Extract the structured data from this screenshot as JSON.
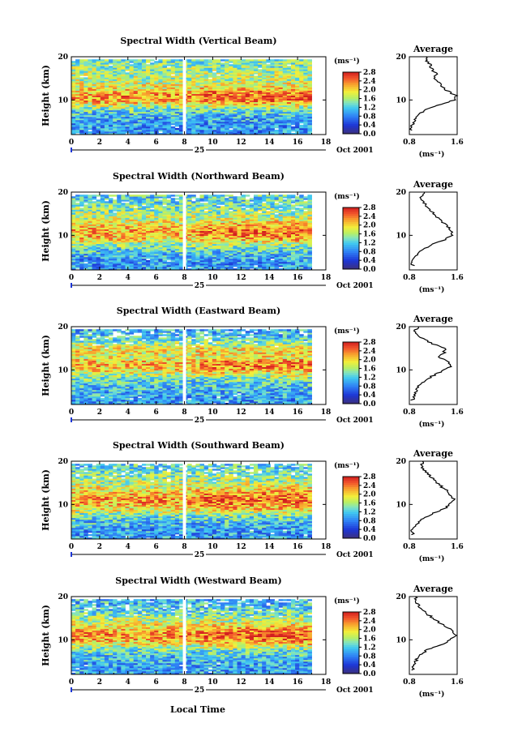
{
  "figure": {
    "x_label": "Local Time",
    "y_label": "Height (km)",
    "date_label": "Oct 2001",
    "day_label": "25",
    "unit_label": "(ms⁻¹)",
    "average_title": "Average"
  },
  "chart_data": [
    {
      "type": "heatmap",
      "title": "Spectral Width (Vertical Beam)",
      "x_ticks": [
        0,
        2,
        4,
        6,
        8,
        10,
        12,
        14,
        16,
        18
      ],
      "y_ticks": [
        10,
        20
      ],
      "xlim": [
        0,
        18
      ],
      "ylim": [
        2,
        20
      ],
      "colorbar_ticks": [
        "0.0",
        "0.4",
        "0.8",
        "1.2",
        "1.6",
        "2.0",
        "2.4",
        "2.8"
      ],
      "colorbar_range": [
        0,
        2.8
      ],
      "data_gap_local_time": 8,
      "data_end_local_time": 17,
      "average_profile": {
        "xlim": [
          0.8,
          1.6
        ],
        "x_ticks": [
          "0.8",
          "1.6"
        ],
        "ylim": [
          2,
          20
        ],
        "y_ticks": [
          10,
          20
        ],
        "height_km": [
          3,
          4,
          5,
          6,
          7,
          8,
          9,
          10,
          11,
          12,
          13,
          14,
          15,
          16,
          17,
          18,
          19,
          20
        ],
        "width_ms": [
          0.82,
          0.84,
          0.88,
          0.9,
          0.98,
          1.1,
          1.35,
          1.55,
          1.58,
          1.45,
          1.36,
          1.3,
          1.22,
          1.25,
          1.18,
          1.15,
          1.1,
          1.08
        ]
      }
    },
    {
      "type": "heatmap",
      "title": "Spectral Width (Northward Beam)",
      "x_ticks": [
        0,
        2,
        4,
        6,
        8,
        10,
        12,
        14,
        16,
        18
      ],
      "y_ticks": [
        10,
        20
      ],
      "xlim": [
        0,
        18
      ],
      "ylim": [
        2,
        20
      ],
      "colorbar_ticks": [
        "0.0",
        "0.4",
        "0.8",
        "1.2",
        "1.6",
        "2.0",
        "2.4",
        "2.8"
      ],
      "colorbar_range": [
        0,
        2.8
      ],
      "data_gap_local_time": 8,
      "data_end_local_time": 17,
      "average_profile": {
        "xlim": [
          0.8,
          1.6
        ],
        "x_ticks": [
          "0.8",
          "1.6"
        ],
        "ylim": [
          2,
          20
        ],
        "y_ticks": [
          10,
          20
        ],
        "height_km": [
          3,
          4,
          5,
          6,
          7,
          8,
          9,
          10,
          11,
          12,
          13,
          14,
          15,
          16,
          17,
          18,
          19,
          20
        ],
        "width_ms": [
          0.86,
          0.84,
          0.9,
          0.95,
          1.05,
          1.2,
          1.4,
          1.5,
          1.52,
          1.45,
          1.35,
          1.28,
          1.2,
          1.15,
          1.08,
          1.02,
          1.0,
          1.05
        ]
      }
    },
    {
      "type": "heatmap",
      "title": "Spectral Width (Eastward Beam)",
      "x_ticks": [
        0,
        2,
        4,
        6,
        8,
        10,
        12,
        14,
        16,
        18
      ],
      "y_ticks": [
        10,
        20
      ],
      "xlim": [
        0,
        18
      ],
      "ylim": [
        2,
        20
      ],
      "colorbar_ticks": [
        "0.0",
        "0.4",
        "0.8",
        "1.2",
        "1.6",
        "2.0",
        "2.4",
        "2.8"
      ],
      "colorbar_range": [
        0,
        2.8
      ],
      "data_gap_local_time": 8,
      "data_end_local_time": 17,
      "average_profile": {
        "xlim": [
          0.8,
          1.6
        ],
        "x_ticks": [
          "0.8",
          "1.6"
        ],
        "ylim": [
          2,
          20
        ],
        "y_ticks": [
          10,
          20
        ],
        "height_km": [
          3,
          4,
          5,
          6,
          7,
          8,
          9,
          10,
          11,
          12,
          13,
          14,
          15,
          16,
          17,
          18,
          19,
          20
        ],
        "width_ms": [
          0.85,
          0.88,
          0.9,
          0.95,
          1.0,
          1.1,
          1.25,
          1.4,
          1.5,
          1.45,
          1.3,
          1.38,
          1.4,
          1.2,
          1.05,
          0.95,
          0.9,
          0.95
        ]
      }
    },
    {
      "type": "heatmap",
      "title": "Spectral Width (Southward Beam)",
      "x_ticks": [
        0,
        2,
        4,
        6,
        8,
        10,
        12,
        14,
        16,
        18
      ],
      "y_ticks": [
        10,
        20
      ],
      "xlim": [
        0,
        18
      ],
      "ylim": [
        2,
        20
      ],
      "colorbar_ticks": [
        "0.0",
        "0.4",
        "0.8",
        "1.2",
        "1.6",
        "2.0",
        "2.4",
        "2.8"
      ],
      "colorbar_range": [
        0,
        2.8
      ],
      "data_gap_local_time": 8,
      "data_end_local_time": 17,
      "average_profile": {
        "xlim": [
          0.8,
          1.6
        ],
        "x_ticks": [
          "0.8",
          "1.6"
        ],
        "ylim": [
          2,
          20
        ],
        "y_ticks": [
          10,
          20
        ],
        "height_km": [
          3,
          4,
          5,
          6,
          7,
          8,
          9,
          10,
          11,
          12,
          13,
          14,
          15,
          16,
          17,
          18,
          19,
          20
        ],
        "width_ms": [
          0.86,
          0.85,
          0.9,
          0.95,
          1.05,
          1.2,
          1.38,
          1.48,
          1.55,
          1.5,
          1.45,
          1.35,
          1.25,
          1.2,
          1.12,
          1.05,
          1.0,
          1.02
        ]
      }
    },
    {
      "type": "heatmap",
      "title": "Spectral Width (Westward Beam)",
      "x_ticks": [
        0,
        2,
        4,
        6,
        8,
        10,
        12,
        14,
        16,
        18
      ],
      "y_ticks": [
        10,
        20
      ],
      "xlim": [
        0,
        18
      ],
      "ylim": [
        2,
        20
      ],
      "colorbar_ticks": [
        "0.0",
        "0.4",
        "0.8",
        "1.2",
        "1.6",
        "2.0",
        "2.4",
        "2.8"
      ],
      "colorbar_range": [
        0,
        2.8
      ],
      "data_gap_local_time": 8,
      "data_end_local_time": 17,
      "average_profile": {
        "xlim": [
          0.8,
          1.6
        ],
        "x_ticks": [
          "0.8",
          "1.6"
        ],
        "ylim": [
          2,
          20
        ],
        "y_ticks": [
          10,
          20
        ],
        "height_km": [
          3,
          4,
          5,
          6,
          7,
          8,
          9,
          10,
          11,
          12,
          13,
          14,
          15,
          16,
          17,
          18,
          19,
          20
        ],
        "width_ms": [
          0.86,
          0.88,
          0.9,
          0.95,
          1.02,
          1.15,
          1.35,
          1.5,
          1.58,
          1.52,
          1.42,
          1.3,
          1.2,
          1.1,
          1.0,
          0.95,
          0.92,
          0.9
        ]
      }
    }
  ]
}
